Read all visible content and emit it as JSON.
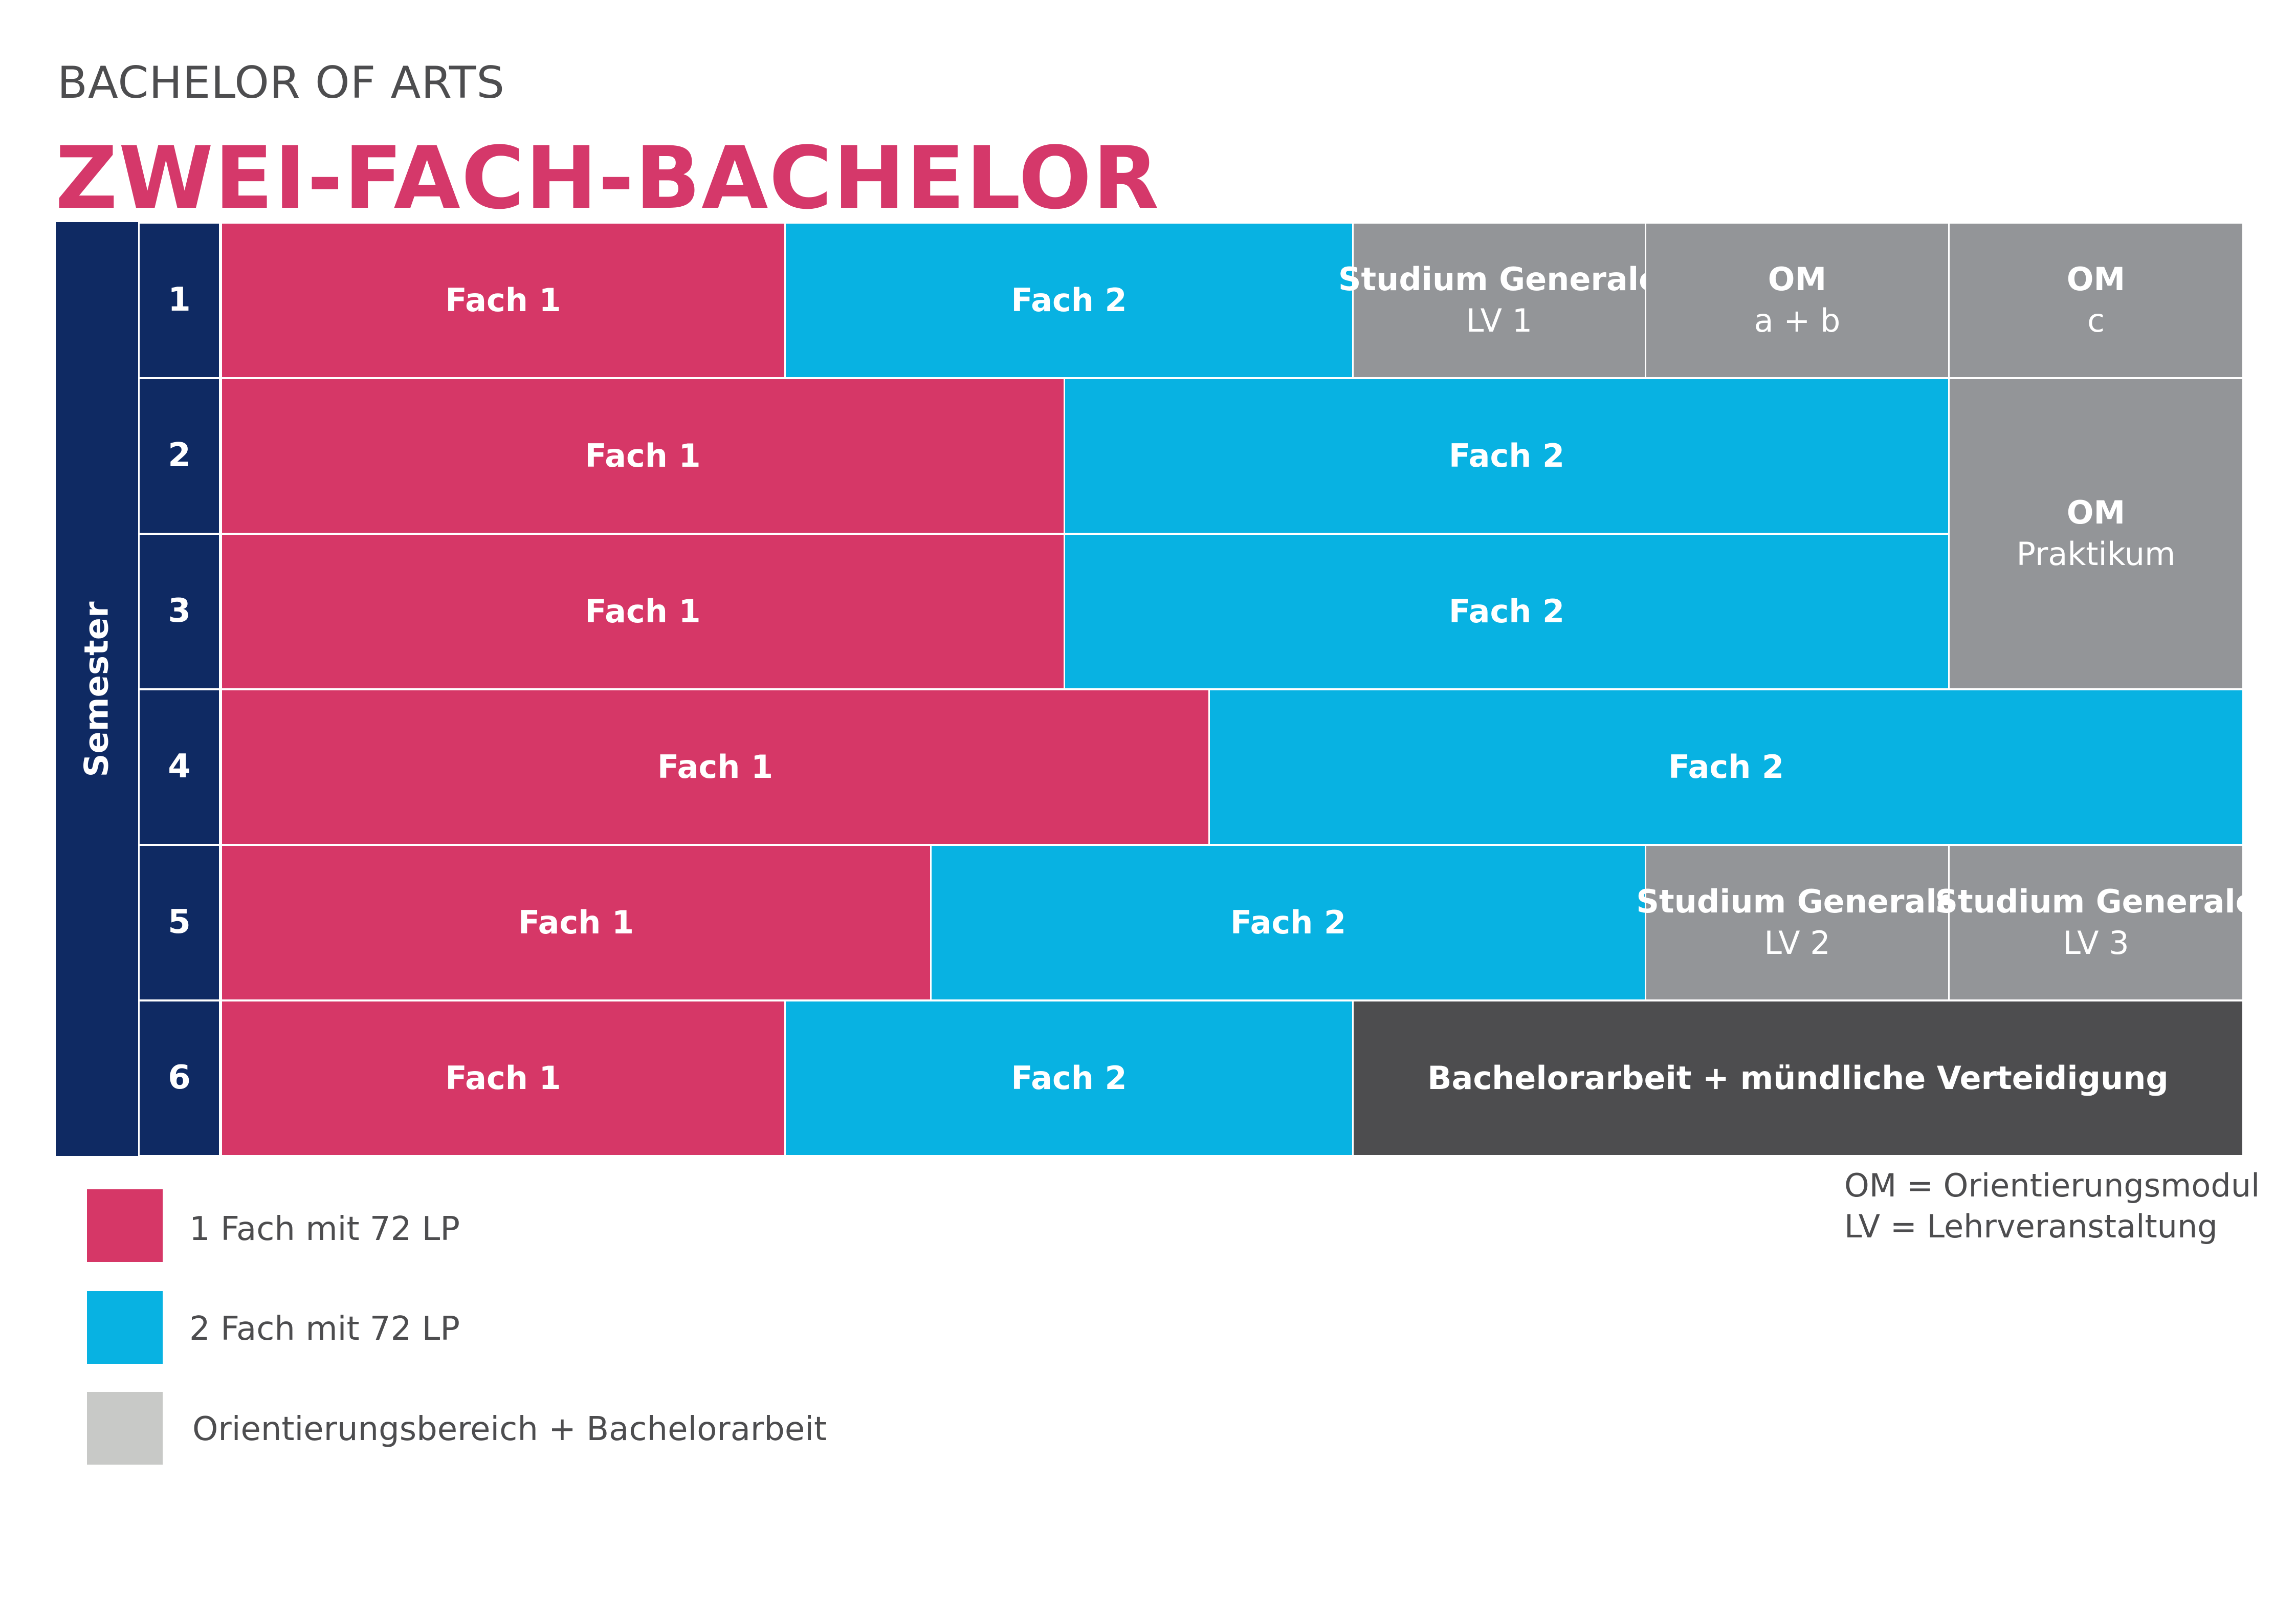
{
  "header": {
    "supertitle": "BACHELOR OF ARTS",
    "title": "ZWEI-FACH-BACHELOR"
  },
  "semester_axis_label": "Semester",
  "colors": {
    "fach1": "#d63767",
    "fach2": "#08b2e2",
    "orientation": "#939598",
    "thesis": "#4d4d4f",
    "semester": "#0f2a63",
    "title": "#d5386a"
  },
  "rows": [
    {
      "number": "1",
      "cells": [
        {
          "label": "Fach 1"
        },
        {
          "label": "Fach 2"
        },
        {
          "label": "Studium Generale",
          "sub": "LV 1"
        },
        {
          "label": "OM",
          "sub": "a + b"
        },
        {
          "label": "OM",
          "sub": "c"
        }
      ]
    },
    {
      "number": "2",
      "cells": [
        {
          "label": "Fach 1"
        },
        {
          "label": "Fach 2"
        },
        {
          "label": "OM",
          "sub": "Praktikum"
        }
      ]
    },
    {
      "number": "3",
      "cells": [
        {
          "label": "Fach 1"
        },
        {
          "label": "Fach 2"
        }
      ]
    },
    {
      "number": "4",
      "cells": [
        {
          "label": "Fach 1"
        },
        {
          "label": "Fach 2"
        }
      ]
    },
    {
      "number": "5",
      "cells": [
        {
          "label": "Fach 1"
        },
        {
          "label": "Fach 2"
        },
        {
          "label": "Studium Generale",
          "sub": "LV 2"
        },
        {
          "label": "Studium Generale",
          "sub": "LV 3"
        }
      ]
    },
    {
      "number": "6",
      "cells": [
        {
          "label": "Fach 1"
        },
        {
          "label": "Fach 2"
        },
        {
          "label": "Bachelorarbeit + mündliche Verteidigung"
        }
      ]
    }
  ],
  "legend": [
    {
      "label": "1 Fach mit 72 LP",
      "color": "#d63767"
    },
    {
      "label": "2 Fach mit 72 LP",
      "color": "#08b2e2"
    },
    {
      "label": "Orientierungsbereich + Bachelorarbeit",
      "color": "#c8c9c7"
    }
  ],
  "abbreviations": [
    "OM = Orientierungsmodul",
    "LV = Lehrveranstaltung"
  ]
}
